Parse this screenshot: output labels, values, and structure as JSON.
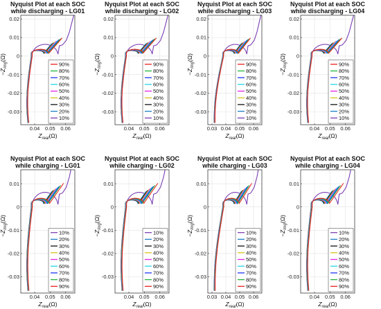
{
  "figure": {
    "ylabel": "−Z",
    "ylabel_sub": "img",
    "ylabel_unit": "(Ω)",
    "xlabel": "Z",
    "xlabel_sub": "real",
    "xlabel_unit": "(Ω)"
  },
  "colors": {
    "90%": "#e8231f",
    "80%": "#23b33c",
    "70%": "#1f35f2",
    "60%": "#22d6e6",
    "50%": "#e423e8",
    "40%": "#d9c21a",
    "30%": "#111111",
    "20%": "#1a7fc4",
    "10%": "#7a3fb3"
  },
  "chart_data": [
    {
      "type": "line",
      "title_line1": "Nyquist Plot at each SOC",
      "title_line2": "while discharging - LG01",
      "xticks": [
        "0.04",
        "0.05",
        "0.06"
      ],
      "xtick_values": [
        0.04,
        0.05,
        0.06
      ],
      "yticks": [
        "0.02",
        "0.01",
        "0",
        "-0.01",
        "-0.02",
        "-0.03"
      ],
      "ytick_values": [
        0.02,
        0.01,
        0,
        -0.01,
        -0.02,
        -0.03
      ],
      "xlim": [
        0.031,
        0.066
      ],
      "ylim": [
        -0.037,
        0.022
      ],
      "legend": [
        "90%",
        "80%",
        "70%",
        "60%",
        "50%",
        "40%",
        "30%",
        "20%",
        "10%"
      ],
      "grid": true,
      "legend_position": "lower-right"
    },
    {
      "type": "line",
      "title_line1": "Nyquist Plot at each SOC",
      "title_line2": "while discharging - LG02",
      "xticks": [
        "0.04",
        "0.05",
        "0.06"
      ],
      "xtick_values": [
        0.04,
        0.05,
        0.06
      ],
      "yticks": [
        "0.02",
        "0.01",
        "0",
        "-0.01",
        "-0.02",
        "-0.03"
      ],
      "ytick_values": [
        0.02,
        0.01,
        0,
        -0.01,
        -0.02,
        -0.03
      ],
      "xlim": [
        0.031,
        0.066
      ],
      "ylim": [
        -0.037,
        0.022
      ],
      "legend": [
        "90%",
        "80%",
        "70%",
        "60%",
        "50%",
        "40%",
        "30%",
        "20%",
        "10%"
      ],
      "grid": true,
      "legend_position": "lower-right"
    },
    {
      "type": "line",
      "title_line1": "Nyquist Plot at each SOC",
      "title_line2": "while discharging - LG03",
      "xticks": [
        "0.03",
        "0.04",
        "0.05",
        "0.06"
      ],
      "xtick_values": [
        0.03,
        0.04,
        0.05,
        0.06
      ],
      "yticks": [
        "0.02",
        "0.01",
        "0",
        "-0.01",
        "-0.02",
        "-0.03"
      ],
      "ytick_values": [
        0.02,
        0.01,
        0,
        -0.01,
        -0.02,
        -0.03
      ],
      "xlim": [
        0.027,
        0.066
      ],
      "ylim": [
        -0.037,
        0.022
      ],
      "legend": [
        "90%",
        "80%",
        "70%",
        "60%",
        "50%",
        "40%",
        "30%",
        "20%",
        "10%"
      ],
      "grid": true,
      "legend_position": "lower-right"
    },
    {
      "type": "line",
      "title_line1": "Nyquist Plot at each SOC",
      "title_line2": "while discharging - LG04",
      "xticks": [
        "0.04",
        "0.05",
        "0.06"
      ],
      "xtick_values": [
        0.04,
        0.05,
        0.06
      ],
      "yticks": [
        "0.02",
        "0.01",
        "0",
        "-0.01",
        "-0.02",
        "-0.03"
      ],
      "ytick_values": [
        0.02,
        0.01,
        0,
        -0.01,
        -0.02,
        -0.03
      ],
      "xlim": [
        0.031,
        0.066
      ],
      "ylim": [
        -0.037,
        0.022
      ],
      "legend": [
        "90%",
        "80%",
        "70%",
        "60%",
        "50%",
        "40%",
        "30%",
        "20%",
        "10%"
      ],
      "grid": true,
      "legend_position": "lower-right"
    },
    {
      "type": "line",
      "title_line1": "Nyquist Plot at each SOC",
      "title_line2": "while charging - LG01",
      "xticks": [
        "0.04",
        "0.05",
        "0.06"
      ],
      "xtick_values": [
        0.04,
        0.05,
        0.06
      ],
      "yticks": [
        "0.01",
        "0",
        "-0.01",
        "-0.02",
        "-0.03"
      ],
      "ytick_values": [
        0.01,
        0,
        -0.01,
        -0.02,
        -0.03
      ],
      "xlim": [
        0.031,
        0.066
      ],
      "ylim": [
        -0.037,
        0.016
      ],
      "legend": [
        "10%",
        "20%",
        "30%",
        "40%",
        "50%",
        "60%",
        "70%",
        "80%",
        "90%"
      ],
      "grid": true,
      "legend_position": "lower-right"
    },
    {
      "type": "line",
      "title_line1": "Nyquist Plot at each SOC",
      "title_line2": "while charging - LG02",
      "xticks": [
        "0.04",
        "0.05",
        "0.06"
      ],
      "xtick_values": [
        0.04,
        0.05,
        0.06
      ],
      "yticks": [
        "0.01",
        "0",
        "-0.01",
        "-0.02",
        "-0.03"
      ],
      "ytick_values": [
        0.01,
        0,
        -0.01,
        -0.02,
        -0.03
      ],
      "xlim": [
        0.031,
        0.066
      ],
      "ylim": [
        -0.037,
        0.016
      ],
      "legend": [
        "10%",
        "20%",
        "30%",
        "40%",
        "50%",
        "60%",
        "70%",
        "80%",
        "90%"
      ],
      "grid": true,
      "legend_position": "lower-right"
    },
    {
      "type": "line",
      "title_line1": "Nyquist Plot at each SOC",
      "title_line2": "while charging - LG03",
      "xticks": [
        "0.03",
        "0.04",
        "0.05",
        "0.06"
      ],
      "xtick_values": [
        0.03,
        0.04,
        0.05,
        0.06
      ],
      "yticks": [
        "0.01",
        "0",
        "-0.01",
        "-0.02",
        "-0.03"
      ],
      "ytick_values": [
        0.01,
        0,
        -0.01,
        -0.02,
        -0.03
      ],
      "xlim": [
        0.027,
        0.066
      ],
      "ylim": [
        -0.037,
        0.016
      ],
      "legend": [
        "10%",
        "20%",
        "30%",
        "40%",
        "50%",
        "60%",
        "70%",
        "80%",
        "90%"
      ],
      "grid": true,
      "legend_position": "lower-right"
    },
    {
      "type": "line",
      "title_line1": "Nyquist Plot at each SOC",
      "title_line2": "while charging - LG04",
      "xticks": [
        "0.04",
        "0.05",
        "0.06"
      ],
      "xtick_values": [
        0.04,
        0.05,
        0.06
      ],
      "yticks": [
        "0.01",
        "0",
        "-0.01",
        "-0.02",
        "-0.03"
      ],
      "ytick_values": [
        0.01,
        0,
        -0.01,
        -0.02,
        -0.03
      ],
      "xlim": [
        0.031,
        0.066
      ],
      "ylim": [
        -0.037,
        0.016
      ],
      "legend": [
        "10%",
        "20%",
        "30%",
        "40%",
        "50%",
        "60%",
        "70%",
        "80%",
        "90%"
      ],
      "grid": true,
      "legend_position": "lower-right"
    }
  ]
}
